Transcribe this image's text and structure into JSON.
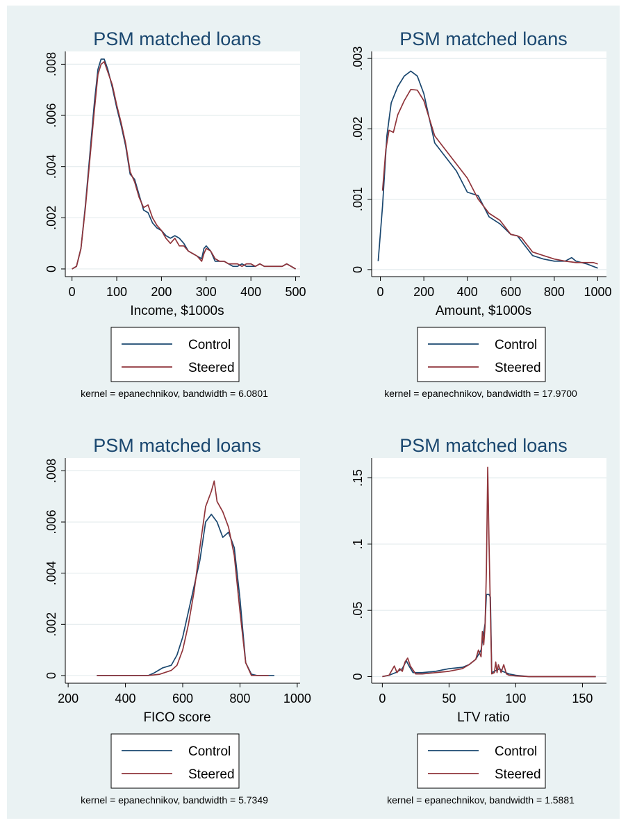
{
  "colors": {
    "background": "#eaf2f3",
    "plot_area": "#ffffff",
    "grid": "#e4ecee",
    "title": "#1a476f",
    "control": "#1a476f",
    "steered": "#90353b"
  },
  "chart_data": [
    {
      "type": "line",
      "title": "PSM matched loans",
      "xlabel": "Income, $1000s",
      "ylabel": "",
      "xlim": [
        -15,
        510
      ],
      "ylim": [
        -0.0003,
        0.0085
      ],
      "xticks": [
        0,
        100,
        200,
        300,
        400,
        500
      ],
      "xtick_labels": [
        "0",
        "100",
        "200",
        "300",
        "400",
        "500"
      ],
      "yticks": [
        0,
        0.002,
        0.004,
        0.006,
        0.008
      ],
      "ytick_labels": [
        "0",
        ".002",
        ".004",
        ".006",
        ".008"
      ],
      "grid": true,
      "legend_position": "bottom",
      "note": "kernel = epanechnikov, bandwidth = 6.0801",
      "series": [
        {
          "name": "Control",
          "x": [
            0,
            10,
            20,
            30,
            40,
            50,
            58,
            65,
            72,
            80,
            90,
            100,
            110,
            120,
            130,
            140,
            150,
            160,
            170,
            180,
            190,
            200,
            210,
            220,
            230,
            240,
            250,
            260,
            270,
            280,
            290,
            295,
            300,
            310,
            320,
            330,
            340,
            350,
            360,
            370,
            380,
            390,
            400,
            410,
            420,
            430,
            440,
            450,
            460,
            470,
            480,
            490,
            500
          ],
          "y": [
            0,
            0.0001,
            0.0008,
            0.0025,
            0.0045,
            0.0065,
            0.0078,
            0.0082,
            0.0082,
            0.0078,
            0.0071,
            0.0063,
            0.0056,
            0.0048,
            0.0037,
            0.0035,
            0.0029,
            0.0023,
            0.0022,
            0.0018,
            0.0016,
            0.0015,
            0.0013,
            0.0012,
            0.0013,
            0.0012,
            0.001,
            0.0007,
            0.0006,
            0.0005,
            0.0004,
            0.0008,
            0.0009,
            0.0007,
            0.0003,
            0.0003,
            0.0003,
            0.0002,
            0.0001,
            0.0001,
            0.0002,
            0.0001,
            0.0001,
            0.0001,
            0.0002,
            0.0001,
            0.0001,
            0.0001,
            0.0001,
            0.0001,
            0.0002,
            0.0001,
            0
          ]
        },
        {
          "name": "Steered",
          "x": [
            0,
            10,
            20,
            30,
            40,
            50,
            58,
            65,
            72,
            80,
            90,
            100,
            110,
            120,
            130,
            140,
            150,
            160,
            170,
            180,
            190,
            200,
            210,
            220,
            230,
            240,
            250,
            260,
            270,
            280,
            290,
            295,
            300,
            310,
            320,
            330,
            340,
            350,
            360,
            370,
            380,
            390,
            400,
            410,
            420,
            430,
            440,
            450,
            460,
            470,
            480,
            490,
            500
          ],
          "y": [
            0,
            0.0001,
            0.0008,
            0.0024,
            0.0043,
            0.0062,
            0.0076,
            0.008,
            0.0081,
            0.0077,
            0.0072,
            0.0064,
            0.0057,
            0.0049,
            0.0038,
            0.0034,
            0.0028,
            0.0024,
            0.0025,
            0.002,
            0.0017,
            0.0015,
            0.0012,
            0.001,
            0.0012,
            0.0009,
            0.0009,
            0.0007,
            0.0006,
            0.0005,
            0.0003,
            0.0006,
            0.0008,
            0.0007,
            0.0004,
            0.0003,
            0.0003,
            0.0002,
            0.0002,
            0.0002,
            0.0001,
            0.0002,
            0.0002,
            0.0001,
            0.0002,
            0.0001,
            0.0001,
            0.0001,
            0.0001,
            0.0001,
            0.0002,
            0.0001,
            0
          ]
        }
      ]
    },
    {
      "type": "line",
      "title": "PSM matched loans",
      "xlabel": "Amount, $1000s",
      "ylabel": "",
      "xlim": [
        -40,
        1040
      ],
      "ylim": [
        -0.0001,
        0.0031
      ],
      "xticks": [
        0,
        200,
        400,
        600,
        800,
        1000
      ],
      "xtick_labels": [
        "0",
        "200",
        "400",
        "600",
        "800",
        "1000"
      ],
      "yticks": [
        0,
        0.001,
        0.002,
        0.003
      ],
      "ytick_labels": [
        "0",
        ".001",
        ".002",
        ".003"
      ],
      "grid": true,
      "legend_position": "bottom",
      "note": "kernel = epanechnikov, bandwidth = 17.9700",
      "series": [
        {
          "name": "Control",
          "x": [
            -10,
            10,
            30,
            50,
            80,
            110,
            140,
            170,
            200,
            250,
            300,
            350,
            400,
            450,
            500,
            550,
            600,
            630,
            650,
            700,
            750,
            800,
            850,
            880,
            900,
            950,
            1000
          ],
          "y": [
            0.00012,
            0.0009,
            0.0019,
            0.00237,
            0.0026,
            0.00275,
            0.00282,
            0.00275,
            0.0025,
            0.0018,
            0.0016,
            0.0014,
            0.0011,
            0.00105,
            0.00075,
            0.00065,
            0.0005,
            0.00048,
            0.0004,
            0.0002,
            0.00015,
            0.00012,
            0.00012,
            0.00017,
            0.00012,
            8e-05,
            2e-05
          ]
        },
        {
          "name": "Steered",
          "x": [
            10,
            25,
            40,
            60,
            80,
            110,
            140,
            170,
            200,
            250,
            300,
            350,
            400,
            450,
            500,
            550,
            600,
            630,
            650,
            700,
            750,
            800,
            850,
            900,
            950,
            980,
            1000
          ],
          "y": [
            0.00112,
            0.0017,
            0.00198,
            0.00195,
            0.0022,
            0.0024,
            0.00256,
            0.00255,
            0.0024,
            0.0019,
            0.0017,
            0.0015,
            0.0013,
            0.001,
            0.0008,
            0.0007,
            0.0005,
            0.00048,
            0.00045,
            0.00025,
            0.0002,
            0.00015,
            0.00012,
            0.0001,
            0.0001,
            0.0001,
            8e-05
          ]
        }
      ]
    },
    {
      "type": "line",
      "title": "PSM matched loans",
      "xlabel": "FICO score",
      "ylabel": "",
      "xlim": [
        190,
        1010
      ],
      "ylim": [
        -0.0003,
        0.0085
      ],
      "xticks": [
        200,
        400,
        600,
        800,
        1000
      ],
      "xtick_labels": [
        "200",
        "400",
        "600",
        "800",
        "1000"
      ],
      "yticks": [
        0,
        0.002,
        0.004,
        0.006,
        0.008
      ],
      "ytick_labels": [
        "0",
        ".002",
        ".004",
        ".006",
        ".008"
      ],
      "grid": true,
      "legend_position": "bottom",
      "note": "kernel = epanechnikov, bandwidth = 5.7349",
      "series": [
        {
          "name": "Control",
          "x": [
            300,
            400,
            480,
            500,
            530,
            560,
            580,
            600,
            620,
            640,
            660,
            680,
            700,
            720,
            740,
            760,
            780,
            800,
            820,
            840,
            860,
            900,
            920
          ],
          "y": [
            0,
            0,
            0,
            0.0001,
            0.0003,
            0.0004,
            0.0008,
            0.0015,
            0.0025,
            0.0035,
            0.0045,
            0.006,
            0.0063,
            0.006,
            0.0054,
            0.0056,
            0.005,
            0.003,
            0.0005,
            5e-05,
            0,
            0,
            0
          ]
        },
        {
          "name": "Steered",
          "x": [
            300,
            400,
            480,
            520,
            560,
            580,
            600,
            620,
            640,
            660,
            680,
            700,
            710,
            720,
            740,
            760,
            780,
            800,
            820,
            840,
            860,
            900
          ],
          "y": [
            0,
            0,
            0,
            5e-05,
            0.0002,
            0.0004,
            0.001,
            0.002,
            0.0033,
            0.005,
            0.0066,
            0.0072,
            0.0076,
            0.0068,
            0.0064,
            0.0058,
            0.0047,
            0.0025,
            0.0005,
            0,
            0,
            0
          ]
        }
      ]
    },
    {
      "type": "line",
      "title": "PSM matched loans",
      "xlabel": "LTV ratio",
      "ylabel": "",
      "xlim": [
        -8,
        168
      ],
      "ylim": [
        -0.005,
        0.165
      ],
      "xticks": [
        0,
        50,
        100,
        150
      ],
      "xtick_labels": [
        "0",
        "50",
        "100",
        "150"
      ],
      "yticks": [
        0,
        0.05,
        0.1,
        0.15
      ],
      "ytick_labels": [
        "0",
        ".05",
        ".1",
        ".15"
      ],
      "grid": true,
      "legend_position": "bottom",
      "note": "kernel = epanechnikov, bandwidth = 1.5881",
      "series": [
        {
          "name": "Control",
          "x": [
            0,
            5,
            10,
            15,
            18,
            20,
            23,
            30,
            40,
            50,
            60,
            65,
            70,
            74,
            77,
            78,
            80,
            81,
            82,
            84,
            86,
            88,
            90,
            95,
            100,
            110,
            120,
            140,
            160
          ],
          "y": [
            0,
            0.001,
            0.003,
            0.006,
            0.012,
            0.008,
            0.003,
            0.003,
            0.004,
            0.006,
            0.007,
            0.009,
            0.013,
            0.02,
            0.04,
            0.062,
            0.062,
            0.06,
            0.003,
            0.004,
            0.005,
            0.006,
            0.004,
            0.002,
            0.001,
            0,
            0,
            0,
            0
          ]
        },
        {
          "name": "Steered",
          "x": [
            0,
            5,
            9,
            11,
            13,
            15,
            17,
            19,
            21,
            25,
            30,
            40,
            50,
            60,
            65,
            70,
            72,
            74,
            75,
            76,
            77,
            78,
            79,
            80,
            81,
            82,
            84,
            85,
            86,
            87,
            89,
            91,
            93,
            95,
            100,
            110,
            120,
            160
          ],
          "y": [
            0,
            0.001,
            0.008,
            0.003,
            0.006,
            0.004,
            0.011,
            0.014,
            0.008,
            0.002,
            0.002,
            0.003,
            0.004,
            0.006,
            0.009,
            0.013,
            0.02,
            0.015,
            0.034,
            0.024,
            0.038,
            0.08,
            0.158,
            0.1,
            0.05,
            0.002,
            0.003,
            0.011,
            0.003,
            0.009,
            0.003,
            0.009,
            0.002,
            0.001,
            0.0005,
            0,
            0,
            0
          ]
        }
      ]
    }
  ]
}
